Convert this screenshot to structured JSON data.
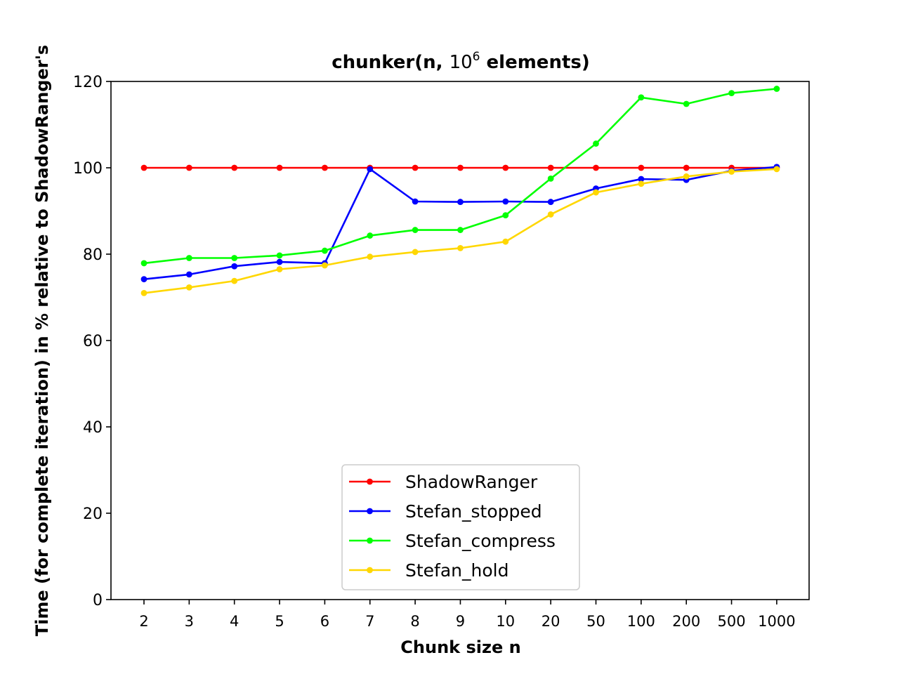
{
  "chart_data": {
    "type": "line",
    "title_main": "chunker(n, ",
    "title_base": "10",
    "title_exp": "6",
    "title_tail": " elements)",
    "xlabel": "Chunk size n",
    "ylabel": "Time (for complete iteration) in % relative to ShadowRanger's",
    "categories": [
      "2",
      "3",
      "4",
      "5",
      "6",
      "7",
      "8",
      "9",
      "10",
      "20",
      "50",
      "100",
      "200",
      "500",
      "1000"
    ],
    "ylim": [
      0,
      120
    ],
    "yticks": [
      "0",
      "20",
      "40",
      "60",
      "80",
      "100",
      "120"
    ],
    "grid": false,
    "legend_position": "lower center",
    "series": [
      {
        "name": "ShadowRanger",
        "color": "#ff0000",
        "values": [
          100,
          100,
          100,
          100,
          100,
          100,
          100,
          100,
          100,
          100,
          100,
          100,
          100,
          100,
          100
        ]
      },
      {
        "name": "Stefan_stopped",
        "color": "#0000ff",
        "values": [
          74.2,
          75.3,
          77.2,
          78.2,
          77.9,
          99.7,
          92.2,
          92.1,
          92.2,
          92.1,
          95.2,
          97.4,
          97.2,
          99.3,
          100.2
        ]
      },
      {
        "name": "Stefan_compress",
        "color": "#00ff00",
        "values": [
          77.9,
          79.1,
          79.1,
          79.7,
          80.8,
          84.3,
          85.6,
          85.6,
          89.0,
          97.5,
          105.6,
          116.3,
          114.8,
          117.3,
          118.3
        ]
      },
      {
        "name": "Stefan_hold",
        "color": "#ffd700",
        "values": [
          71.0,
          72.3,
          73.8,
          76.5,
          77.4,
          79.4,
          80.5,
          81.4,
          82.9,
          89.2,
          94.3,
          96.3,
          98.0,
          99.1,
          99.7
        ]
      }
    ]
  }
}
